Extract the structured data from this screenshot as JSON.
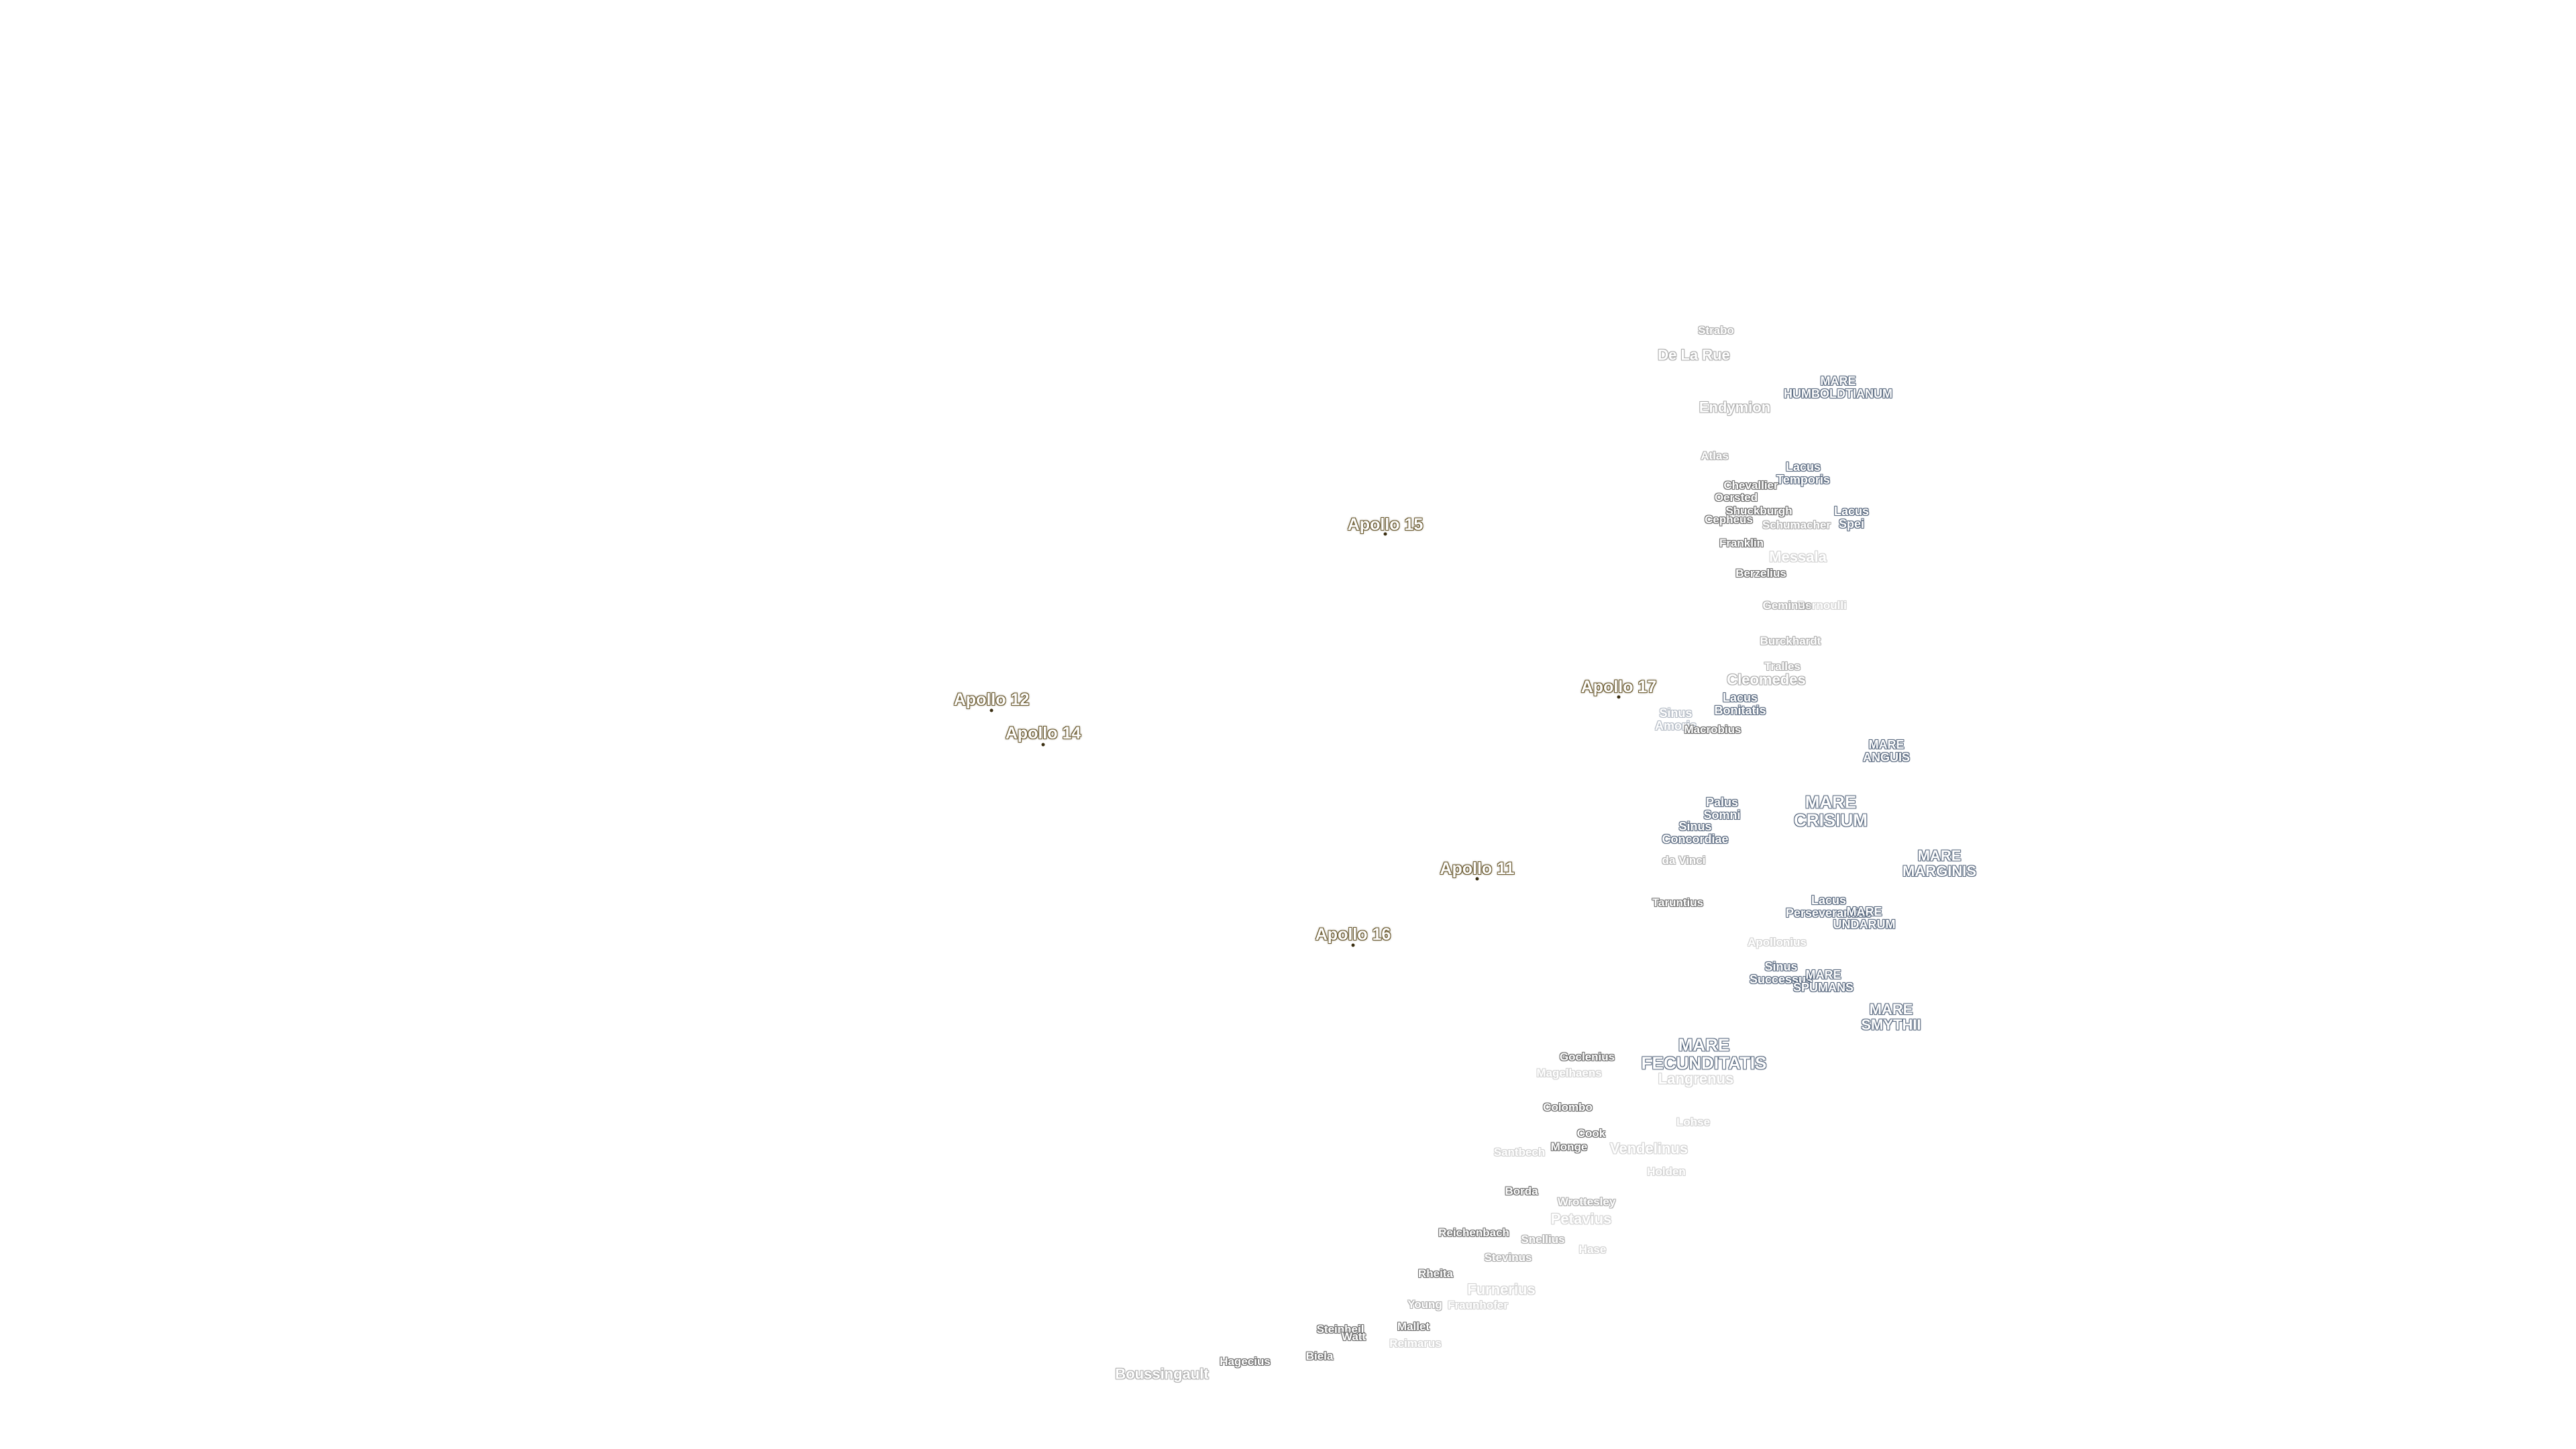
{
  "map": {
    "apollo_sites": [
      "Apollo 15",
      "Apollo 12",
      "Apollo 14",
      "Apollo 17",
      "Apollo 11",
      "Apollo 16"
    ],
    "maria": [
      "MARE\nHUMBOLDTIANUM",
      "Lacus\nTemporis",
      "Lacus\nSpei",
      "Lacus\nBonitatis",
      "Sinus\nAmoris",
      "MARE\nANGUIS",
      "Palus\nSomni",
      "Sinus\nConcordiae",
      "MARE\nCRISIUM",
      "MARE\nMARGINIS",
      "Lacus\nPerseverantiae",
      "MARE\nUNDARUM",
      "Sinus\nSuccessus",
      "MARE\nSPUMANS",
      "MARE\nSMYTHII",
      "MARE\nFECUNDITATIS"
    ],
    "craters": [
      "Strabo",
      "De La Rue",
      "Endymion",
      "Atlas",
      "Chevallier",
      "Oersted",
      "Shuckburgh",
      "Cepheus",
      "Schumacher",
      "Franklin",
      "Messala",
      "Berzelius",
      "Geminus",
      "Bernoulli",
      "Burckhardt",
      "Tralles",
      "Cleomedes",
      "Macrobius",
      "da Vinci",
      "Taruntius",
      "Apollonius",
      "Goclenius",
      "Magelhaens",
      "Langrenus",
      "Colombo",
      "Lohse",
      "Cook",
      "Monge",
      "Santbech",
      "Vendelinus",
      "Holden",
      "Borda",
      "Wrottesley",
      "Petavius",
      "Reichenbach",
      "Snellius",
      "Hase",
      "Stevinus",
      "Rheita",
      "Furnerius",
      "Young",
      "Fraunhofer",
      "Steinheil",
      "Watt",
      "Mallet",
      "Reimarus",
      "Hagecius",
      "Biela",
      "Boussingault"
    ]
  }
}
